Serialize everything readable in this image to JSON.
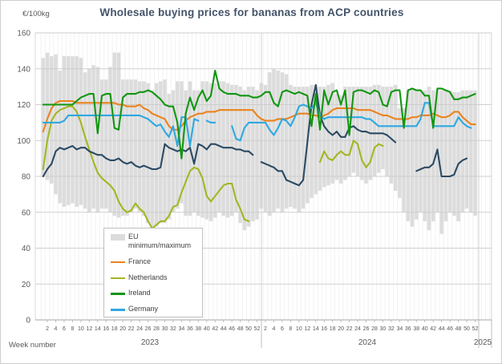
{
  "chart_data": {
    "type": "line",
    "title": "Wholesale buying prices for bananas from ACP countries",
    "ylabel": "€/100kg",
    "xlabel": "Week number",
    "ylim": [
      0,
      160
    ],
    "ytick_step": 20,
    "grid": true,
    "legend_position": "inside-lower-left",
    "x_week_ticks": [
      2,
      4,
      6,
      8,
      10,
      12,
      14,
      16,
      18,
      20,
      22,
      24,
      26,
      28,
      30,
      32,
      34,
      36,
      38,
      40,
      42,
      44,
      46,
      48,
      50,
      52
    ],
    "years": [
      "2023",
      "2024",
      "2025"
    ],
    "weeks_per_year": 52,
    "band": {
      "name": "EU minimum/maximum",
      "color": "#dcdcdc",
      "max": [
        146,
        149,
        147,
        148,
        139,
        147,
        147,
        147,
        147,
        146,
        138,
        140,
        142,
        141,
        134,
        134,
        141,
        149,
        149,
        134,
        134,
        134,
        134,
        133,
        133,
        132,
        128,
        132,
        133,
        134,
        126,
        128,
        133,
        133,
        128,
        133,
        128,
        128,
        133,
        133,
        132,
        132,
        133,
        133,
        132,
        131,
        131,
        130,
        128,
        130,
        130,
        128,
        132,
        131,
        138,
        140,
        139,
        138,
        137,
        131,
        130,
        130,
        130,
        130,
        131,
        131,
        130,
        130,
        131,
        132,
        126,
        125,
        130,
        130,
        130,
        130,
        130,
        130,
        130,
        131,
        131,
        130,
        130,
        130,
        131,
        118,
        118,
        128,
        129,
        128,
        128,
        128,
        130,
        128,
        128,
        128,
        128,
        128,
        127,
        127,
        128,
        128,
        128,
        128
      ],
      "min": [
        80,
        78,
        76,
        70,
        65,
        63,
        64,
        65,
        63,
        64,
        62,
        60,
        62,
        60,
        62,
        62,
        60,
        58,
        57,
        58,
        58,
        60,
        62,
        60,
        58,
        54,
        50,
        52,
        54,
        54,
        56,
        60,
        62,
        65,
        58,
        58,
        60,
        58,
        57,
        56,
        55,
        57,
        60,
        58,
        57,
        58,
        60,
        54,
        50,
        52,
        55,
        56,
        62,
        60,
        58,
        60,
        62,
        60,
        62,
        63,
        62,
        60,
        62,
        65,
        68,
        70,
        72,
        74,
        75,
        76,
        78,
        76,
        78,
        80,
        82,
        80,
        78,
        76,
        78,
        80,
        82,
        84,
        80,
        76,
        72,
        68,
        60,
        55,
        52,
        56,
        60,
        55,
        50,
        55,
        60,
        48,
        55,
        60,
        58,
        55,
        60,
        62,
        60,
        58
      ]
    },
    "series": [
      {
        "name": "Netherlands",
        "color": "#a4b622",
        "in_legend": true,
        "values": [
          84,
          100,
          111,
          115,
          117,
          118,
          119,
          119,
          116,
          110,
          102,
          95,
          88,
          82,
          79,
          77,
          75,
          72,
          66,
          62,
          60,
          61,
          65,
          62,
          60,
          55,
          51,
          53,
          55,
          55,
          58,
          63,
          64,
          71,
          77,
          83,
          85,
          84,
          79,
          69,
          66,
          69,
          72,
          75,
          76,
          76,
          67,
          62,
          56,
          55,
          null,
          null,
          null,
          null,
          null,
          null,
          null,
          null,
          null,
          null,
          null,
          null,
          null,
          null,
          null,
          null,
          88,
          94,
          90,
          89,
          92,
          94,
          92,
          92,
          100,
          98,
          89,
          85,
          88,
          96,
          98,
          97,
          null,
          null,
          null,
          null,
          null,
          null,
          null,
          null,
          null,
          null,
          null,
          null,
          null,
          null,
          null,
          null,
          null,
          null,
          null,
          null,
          null,
          null
        ]
      },
      {
        "name": "",
        "id": "unlabeled-dark-blue",
        "color": "#2b4a63",
        "in_legend": false,
        "values": [
          80,
          84,
          87,
          94,
          96,
          95,
          96,
          97,
          95,
          96,
          96,
          94,
          93,
          92,
          92,
          90,
          89,
          89,
          90,
          88,
          87,
          88,
          86,
          85,
          86,
          85,
          84,
          84,
          85,
          98,
          96,
          95,
          94,
          95,
          94,
          96,
          87,
          98,
          97,
          95,
          98,
          98,
          97,
          96,
          96,
          96,
          95,
          95,
          94,
          94,
          92,
          null,
          88,
          87,
          86,
          85,
          83,
          83,
          78,
          77,
          76,
          75,
          78,
          99,
          120,
          131,
          114,
          108,
          105,
          103,
          105,
          102,
          102,
          107,
          108,
          106,
          105,
          105,
          104,
          104,
          104,
          104,
          103,
          101,
          99,
          null,
          null,
          null,
          null,
          83,
          84,
          85,
          85,
          87,
          95,
          80,
          80,
          80,
          81,
          87,
          89,
          90,
          null,
          null
        ]
      },
      {
        "name": "France",
        "color": "#ea831e",
        "in_legend": true,
        "values": [
          105,
          112,
          118,
          121,
          122,
          122,
          122,
          122,
          121,
          121,
          121,
          121,
          121,
          121,
          121,
          121,
          121,
          121,
          120,
          120,
          119,
          119,
          119,
          120,
          118,
          117,
          115,
          114,
          113,
          112,
          108,
          106,
          106,
          108,
          111,
          113,
          114,
          115,
          115,
          116,
          116,
          116,
          117,
          117,
          117,
          117,
          117,
          117,
          117,
          117,
          117,
          114,
          112,
          111,
          111,
          111,
          112,
          112,
          112,
          113,
          114,
          115,
          115,
          115,
          114,
          114,
          113,
          114,
          115,
          117,
          118,
          118,
          118,
          118,
          118,
          117,
          117,
          117,
          117,
          116,
          115,
          114,
          114,
          113,
          112,
          112,
          112,
          112,
          113,
          113,
          114,
          114,
          114,
          115,
          114,
          113,
          113,
          114,
          116,
          116,
          113,
          111,
          109,
          109
        ]
      },
      {
        "name": "Germany",
        "color": "#2fa8e1",
        "in_legend": true,
        "values": [
          110,
          110,
          110,
          110,
          110,
          111,
          114,
          114,
          114,
          114,
          114,
          114,
          114,
          114,
          114,
          114,
          114,
          114,
          114,
          114,
          114,
          114,
          114,
          114,
          113,
          112,
          110,
          108,
          109,
          105,
          102,
          108,
          97,
          113,
          113,
          97,
          112,
          111,
          null,
          111,
          110,
          110,
          null,
          110,
          null,
          108,
          101,
          100,
          107,
          110,
          110,
          110,
          110,
          110,
          106,
          103,
          107,
          112,
          111,
          108,
          113,
          119,
          120,
          119,
          118,
          121,
          114,
          112,
          113,
          113,
          113,
          113,
          113,
          113,
          113,
          113,
          113,
          112,
          112,
          110,
          108,
          108,
          108,
          108,
          108,
          108,
          108,
          108,
          108,
          108,
          112,
          121,
          121,
          108,
          108,
          108,
          108,
          108,
          108,
          113,
          110,
          108,
          107,
          null
        ]
      },
      {
        "name": "Ireland",
        "color": "#119611",
        "in_legend": true,
        "values": [
          120,
          120,
          120,
          120,
          120,
          120,
          120,
          120,
          122,
          124,
          125,
          126,
          126,
          104,
          125,
          126,
          126,
          107,
          106,
          124,
          126,
          126,
          126,
          127,
          127,
          128,
          127,
          125,
          123,
          120,
          119,
          119,
          110,
          90,
          115,
          124,
          117,
          124,
          128,
          122,
          125,
          139,
          129,
          127,
          126,
          126,
          126,
          125,
          125,
          125,
          124,
          124,
          125,
          127,
          127,
          121,
          119,
          127,
          128,
          127,
          126,
          127,
          126,
          125,
          108,
          126,
          106,
          128,
          120,
          127,
          128,
          120,
          128,
          103,
          127,
          128,
          128,
          127,
          126,
          128,
          127,
          120,
          119,
          127,
          128,
          128,
          107,
          128,
          129,
          128,
          128,
          125,
          125,
          107,
          129,
          129,
          128,
          127,
          123,
          123,
          124,
          124,
          125,
          126
        ]
      }
    ],
    "legend": [
      {
        "label": "EU\nminimum/maximum",
        "type": "band",
        "color": "#dcdcdc"
      },
      {
        "label": "France",
        "type": "line",
        "color": "#ea831e"
      },
      {
        "label": "Netherlands",
        "type": "line",
        "color": "#a4b622"
      },
      {
        "label": "Ireland",
        "type": "line",
        "color": "#119611"
      },
      {
        "label": "Germany",
        "type": "line",
        "color": "#2fa8e1"
      }
    ],
    "colors": {
      "title": "#44546a",
      "axis_text": "#595959",
      "grid_minor": "#e7e7e7",
      "grid_major": "#cbcbcb",
      "axis_line": "#a6a6a6"
    }
  }
}
